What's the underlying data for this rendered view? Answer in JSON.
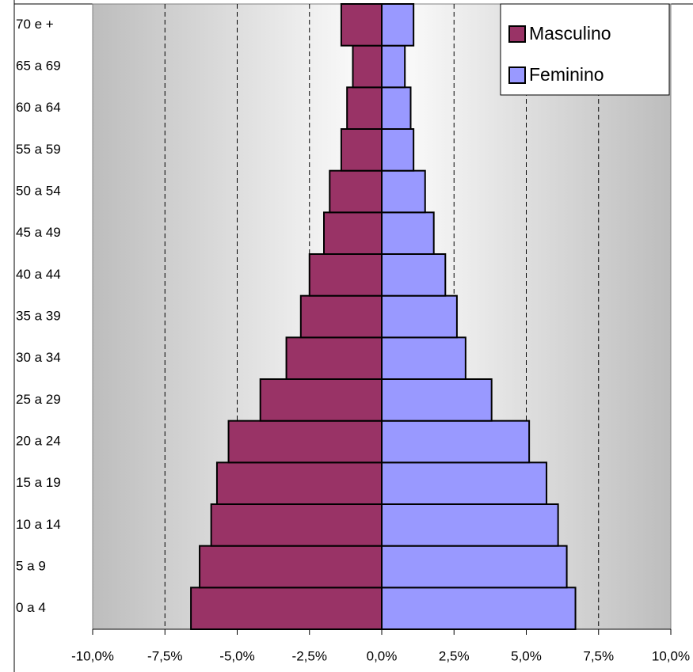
{
  "chart_data": {
    "type": "bar",
    "orientation": "horizontal",
    "categories": [
      "0 a 4",
      "5 a 9",
      "10 a 14",
      "15 a 19",
      "20 a 24",
      "25 a 29",
      "30 a 34",
      "35 a 39",
      "40 a 44",
      "45 a 49",
      "50 a 54",
      "55 a 59",
      "60 a 64",
      "65 a 69",
      "70 e +"
    ],
    "series": [
      {
        "name": "Masculino",
        "color": "#993366",
        "values": [
          -6.6,
          -6.3,
          -5.9,
          -5.7,
          -5.3,
          -4.2,
          -3.3,
          -2.8,
          -2.5,
          -2.0,
          -1.8,
          -1.4,
          -1.2,
          -1.0,
          -1.4
        ]
      },
      {
        "name": "Feminino",
        "color": "#9999ff",
        "values": [
          6.7,
          6.4,
          6.1,
          5.7,
          5.1,
          3.8,
          2.9,
          2.6,
          2.2,
          1.8,
          1.5,
          1.1,
          1.0,
          0.8,
          1.1
        ]
      }
    ],
    "xlim": [
      -10,
      10
    ],
    "xticks": [
      {
        "value": -10,
        "label": "-10,0%"
      },
      {
        "value": -7.5,
        "label": "-7,5%"
      },
      {
        "value": -5,
        "label": "-5,0%"
      },
      {
        "value": -2.5,
        "label": "-2,5%"
      },
      {
        "value": 0,
        "label": "0,0%"
      },
      {
        "value": 2.5,
        "label": "2,5%"
      },
      {
        "value": 5,
        "label": "5,0%"
      },
      {
        "value": 7.5,
        "label": "7,5%"
      },
      {
        "value": 10,
        "label": "10,0%"
      }
    ],
    "grid": true,
    "legend": "top-right"
  }
}
